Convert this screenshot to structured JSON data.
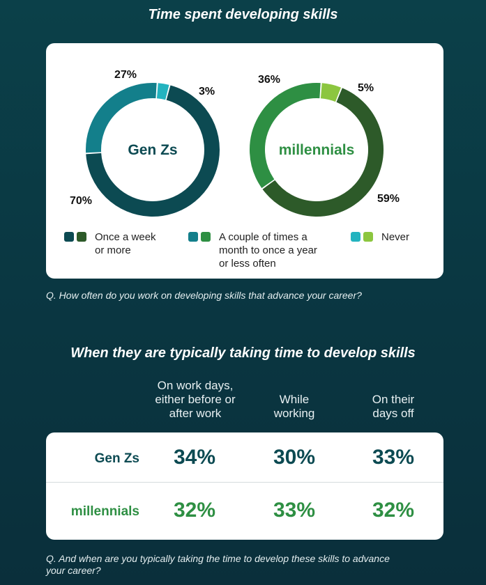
{
  "section1": {
    "title": "Time spent developing skills",
    "question": "Q. How often do you work on developing skills that advance your career?"
  },
  "colors": {
    "genz_dark": "#0c4a52",
    "genz_mid": "#137f8b",
    "genz_light": "#23b3bf",
    "mill_dark": "#2d5a29",
    "mill_mid": "#2e8f43",
    "mill_light": "#8cc63f"
  },
  "chart_data": [
    {
      "type": "pie",
      "title": "Gen Zs",
      "categories": [
        "Once a week or more",
        "A couple of times a month to once a year or less often",
        "Never"
      ],
      "values": [
        70,
        27,
        3
      ],
      "labels": [
        "70%",
        "27%",
        "3%"
      ]
    },
    {
      "type": "pie",
      "title": "millennials",
      "categories": [
        "Once a week or more",
        "A couple of times a month to once a year or less often",
        "Never"
      ],
      "values": [
        59,
        36,
        5
      ],
      "labels": [
        "59%",
        "36%",
        "5%"
      ]
    },
    {
      "type": "table",
      "title": "When they are typically taking time to develop skills",
      "columns": [
        "On work days, either before or after work",
        "While working",
        "On their days off"
      ],
      "rows": [
        {
          "name": "Gen Zs",
          "values": [
            34,
            30,
            33
          ],
          "labels": [
            "34%",
            "30%",
            "33%"
          ]
        },
        {
          "name": "millennials",
          "values": [
            32,
            33,
            32
          ],
          "labels": [
            "32%",
            "33%",
            "32%"
          ]
        }
      ]
    }
  ],
  "legend": [
    {
      "line1": "Once a week",
      "line2": "or more",
      "line3": ""
    },
    {
      "line1": "A couple of times a",
      "line2": "month to once a year",
      "line3": "or less often"
    },
    {
      "line1": "Never",
      "line2": "",
      "line3": ""
    }
  ],
  "section2": {
    "title": "When they are typically taking time to develop skills",
    "col1": [
      "On work days,",
      "either before or",
      "after work"
    ],
    "col2": [
      "While",
      "working"
    ],
    "col3": [
      "On their",
      "days off"
    ],
    "question_line1": "Q. And when are you typically taking the time to develop these skills to advance",
    "question_line2": "your career?"
  }
}
